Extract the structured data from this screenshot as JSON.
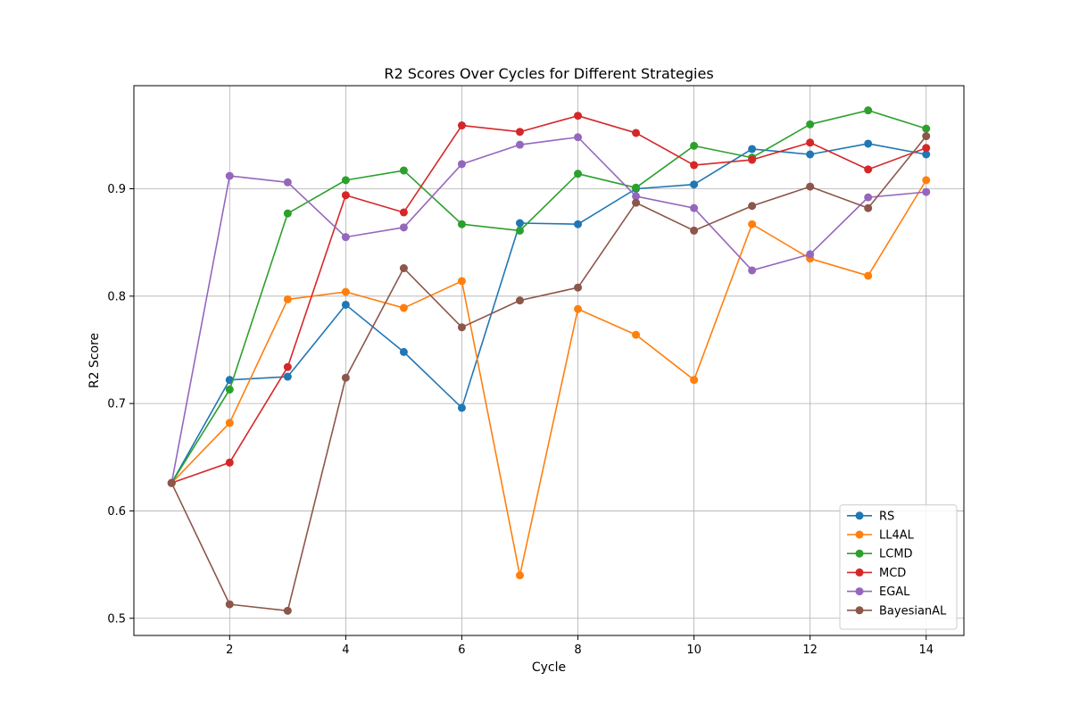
{
  "chart_data": {
    "type": "line",
    "title": "R2 Scores Over Cycles for Different Strategies",
    "xlabel": "Cycle",
    "ylabel": "R2 Score",
    "x": [
      1,
      2,
      3,
      4,
      5,
      6,
      7,
      8,
      9,
      10,
      11,
      12,
      13,
      14
    ],
    "xlim": [
      0.35,
      14.65
    ],
    "ylim": [
      0.484,
      0.996
    ],
    "xticks": [
      2,
      4,
      6,
      8,
      10,
      12,
      14
    ],
    "yticks": [
      0.5,
      0.6,
      0.7,
      0.8,
      0.9
    ],
    "xtick_labels": [
      "2",
      "4",
      "6",
      "8",
      "10",
      "12",
      "14"
    ],
    "ytick_labels": [
      "0.5",
      "0.6",
      "0.7",
      "0.8",
      "0.9"
    ],
    "grid": true,
    "legend_position": "lower-right",
    "series": [
      {
        "name": "RS",
        "color": "#1f77b4",
        "values": [
          0.626,
          0.722,
          0.725,
          0.792,
          0.748,
          0.696,
          0.868,
          0.867,
          0.9,
          0.904,
          0.937,
          0.932,
          0.942,
          0.932
        ]
      },
      {
        "name": "LL4AL",
        "color": "#ff7f0e",
        "values": [
          0.626,
          0.682,
          0.797,
          0.804,
          0.789,
          0.814,
          0.54,
          0.788,
          0.764,
          0.722,
          0.867,
          0.835,
          0.819,
          0.908
        ]
      },
      {
        "name": "LCMD",
        "color": "#2ca02c",
        "values": [
          0.626,
          0.713,
          0.877,
          0.908,
          0.917,
          0.867,
          0.861,
          0.914,
          0.901,
          0.94,
          0.929,
          0.96,
          0.973,
          0.956
        ]
      },
      {
        "name": "MCD",
        "color": "#d62728",
        "values": [
          0.626,
          0.645,
          0.734,
          0.894,
          0.878,
          0.959,
          0.953,
          0.968,
          0.952,
          0.922,
          0.927,
          0.943,
          0.918,
          0.938
        ]
      },
      {
        "name": "EGAL",
        "color": "#9467bd",
        "values": [
          0.626,
          0.912,
          0.906,
          0.855,
          0.864,
          0.923,
          0.941,
          0.948,
          0.893,
          0.882,
          0.824,
          0.839,
          0.892,
          0.897
        ]
      },
      {
        "name": "BayesianAL",
        "color": "#8c564b",
        "values": [
          0.626,
          0.513,
          0.507,
          0.724,
          0.826,
          0.771,
          0.796,
          0.808,
          0.887,
          0.861,
          0.884,
          0.902,
          0.882,
          0.949
        ]
      }
    ]
  }
}
